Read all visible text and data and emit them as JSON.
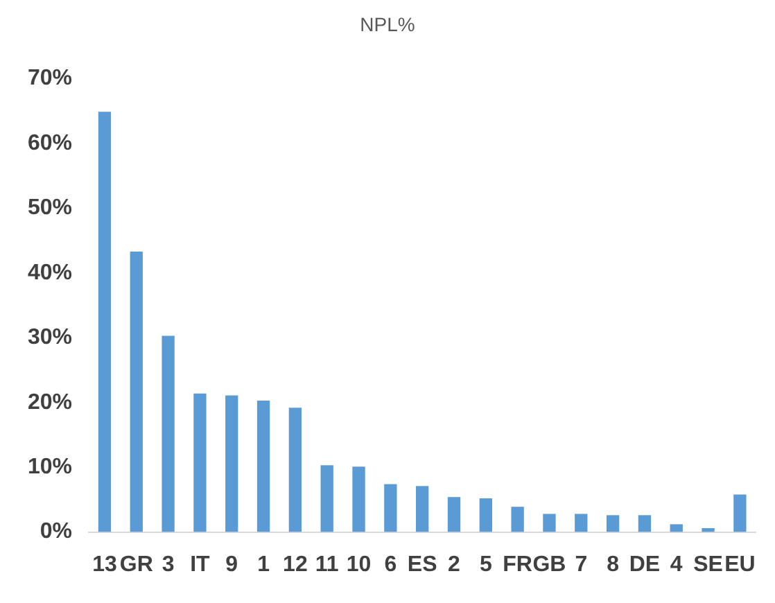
{
  "chart_data": {
    "type": "bar",
    "title": "NPL%",
    "categories": [
      "13",
      "GR",
      "3",
      "IT",
      "9",
      "1",
      "12",
      "11",
      "10",
      "6",
      "ES",
      "2",
      "5",
      "FR",
      "GB",
      "7",
      "8",
      "DE",
      "4",
      "SE",
      "EU"
    ],
    "values": [
      64.9,
      43.3,
      30.3,
      21.4,
      21.1,
      20.3,
      19.2,
      10.3,
      10.1,
      7.4,
      7.1,
      5.4,
      5.2,
      3.9,
      2.8,
      2.8,
      2.6,
      2.6,
      1.2,
      0.6,
      5.8
    ],
    "color": "#5b9bd5",
    "ylim": [
      0,
      70
    ],
    "yticks": [
      {
        "value": 0,
        "label": "0%"
      },
      {
        "value": 10,
        "label": "10%"
      },
      {
        "value": 20,
        "label": "20%"
      },
      {
        "value": 30,
        "label": "30%"
      },
      {
        "value": 40,
        "label": "40%"
      },
      {
        "value": 50,
        "label": "50%"
      },
      {
        "value": 60,
        "label": "60%"
      },
      {
        "value": 70,
        "label": "70%"
      }
    ],
    "grid": false,
    "legend": false
  }
}
